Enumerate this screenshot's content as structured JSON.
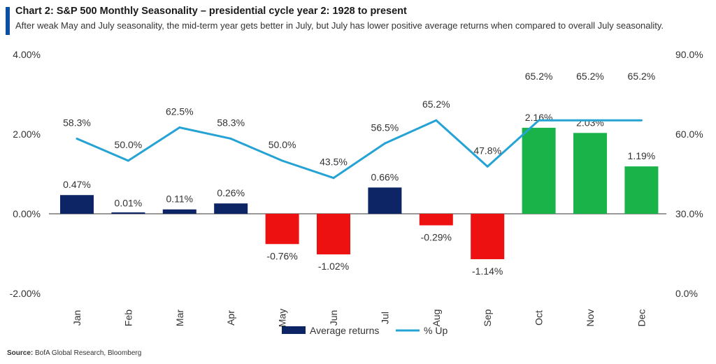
{
  "header": {
    "title": "Chart 2: S&P 500 Monthly Seasonality – presidential cycle year 2: 1928 to present",
    "subtitle": "After weak May and July seasonality, the mid-term year gets better in July, but July has lower positive average returns when compared to overall July seasonality."
  },
  "source": {
    "label": "Source:",
    "text": "BofA Global Research, Bloomberg"
  },
  "colors": {
    "positive_bar": "#0d2565",
    "negative_bar": "#ee1111",
    "q4_bar": "#19b34a",
    "line": "#24a3d4",
    "header_accent": "#0a4fa3"
  },
  "chart_data": {
    "type": "bar",
    "categories": [
      "Jan",
      "Feb",
      "Mar",
      "Apr",
      "May",
      "Jun",
      "Jul",
      "Aug",
      "Sep",
      "Oct",
      "Nov",
      "Dec"
    ],
    "series": [
      {
        "name": "Average returns",
        "type": "bar",
        "axis": "left",
        "values": [
          0.47,
          0.01,
          0.11,
          0.26,
          -0.76,
          -1.02,
          0.66,
          -0.29,
          -1.14,
          2.16,
          2.03,
          1.19
        ],
        "labels": [
          "0.47%",
          "0.01%",
          "0.11%",
          "0.26%",
          "-0.76%",
          "-1.02%",
          "0.66%",
          "-0.29%",
          "-1.14%",
          "2.16%",
          "2.03%",
          "1.19%"
        ]
      },
      {
        "name": "% Up",
        "type": "line",
        "axis": "right",
        "values": [
          58.3,
          50.0,
          62.5,
          58.3,
          50.0,
          43.5,
          56.5,
          65.2,
          47.8,
          65.2,
          65.2,
          65.2
        ],
        "labels": [
          "58.3%",
          "50.0%",
          "62.5%",
          "58.3%",
          "50.0%",
          "43.5%",
          "56.5%",
          "65.2%",
          "47.8%",
          "65.2%",
          "65.2%",
          "65.2%"
        ]
      }
    ],
    "y_left": {
      "range": [
        -2,
        4
      ],
      "ticks": [
        4,
        2,
        0,
        -2
      ],
      "tick_labels": [
        "4.00%",
        "2.00%",
        "0.00%",
        "-2.00%"
      ]
    },
    "y_right": {
      "range": [
        0,
        90
      ],
      "ticks": [
        90,
        60,
        30,
        0
      ],
      "tick_labels": [
        "90.0%",
        "60.0%",
        "30.0%",
        "0.0%"
      ]
    },
    "grid": false,
    "legend": "bottom-center"
  }
}
